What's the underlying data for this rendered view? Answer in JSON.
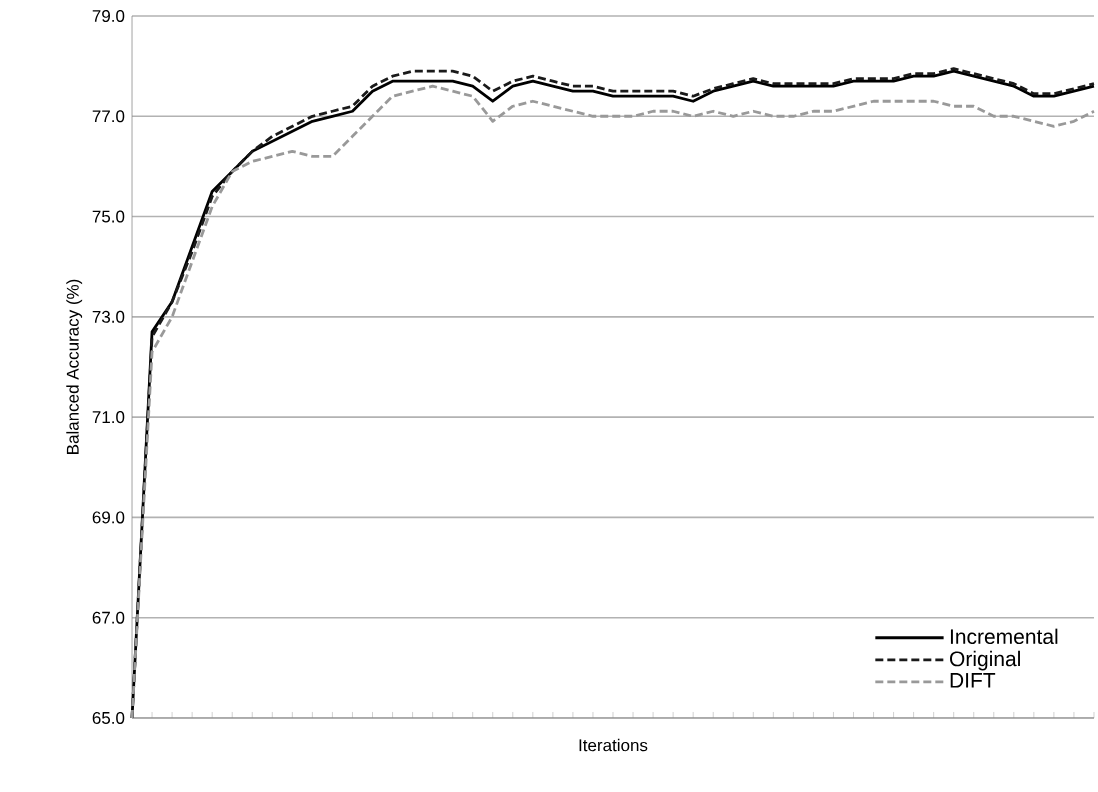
{
  "chart_data": {
    "type": "line",
    "xlabel": "Iterations",
    "ylabel": "Balanced Accuracy (%)",
    "categories": [
      null,
      null,
      null,
      null,
      null,
      null,
      null,
      null,
      null,
      null,
      null,
      null,
      null,
      null,
      null,
      null,
      null,
      null,
      null,
      null,
      null,
      null,
      null,
      null,
      null,
      null,
      null,
      null,
      null,
      null,
      null,
      null,
      null,
      null,
      null,
      null,
      null,
      null,
      null,
      null,
      null,
      null,
      null,
      null,
      null,
      null,
      null,
      null,
      null
    ],
    "ylim": [
      65,
      79
    ],
    "yticks": [
      {
        "value": 65,
        "label": "65.0"
      },
      {
        "value": 67,
        "label": "67.0"
      },
      {
        "value": 69,
        "label": "69.0"
      },
      {
        "value": 71,
        "label": "71.0"
      },
      {
        "value": 73,
        "label": "73.0"
      },
      {
        "value": 75,
        "label": "75.0"
      },
      {
        "value": 77,
        "label": "77.0"
      },
      {
        "value": 79,
        "label": "79.0"
      }
    ],
    "grid": "y",
    "legend": "bottom right",
    "tick_labels": "y",
    "marker": "none",
    "series": [
      {
        "name": "Incremental",
        "color": "#000000",
        "line_style": "solid",
        "values": [
          65.0,
          72.7,
          73.3,
          74.4,
          75.5,
          75.9,
          76.3,
          76.5,
          76.7,
          76.9,
          77.0,
          77.1,
          77.5,
          77.7,
          77.7,
          77.7,
          77.7,
          77.6,
          77.3,
          77.6,
          77.7,
          77.6,
          77.5,
          77.5,
          77.4,
          77.4,
          77.4,
          77.4,
          77.3,
          77.5,
          77.6,
          77.7,
          77.6,
          77.6,
          77.6,
          77.6,
          77.7,
          77.7,
          77.7,
          77.8,
          77.8,
          77.9,
          77.8,
          77.7,
          77.6,
          77.4,
          77.4,
          77.5,
          77.6
        ]
      },
      {
        "name": "Original",
        "color": "#1a1a1a",
        "line_style": "dashed",
        "values": [
          65.0,
          72.6,
          73.3,
          74.3,
          75.4,
          75.9,
          76.3,
          76.6,
          76.8,
          77.0,
          77.1,
          77.2,
          77.6,
          77.8,
          77.9,
          77.9,
          77.9,
          77.8,
          77.5,
          77.7,
          77.8,
          77.7,
          77.6,
          77.6,
          77.5,
          77.5,
          77.5,
          77.5,
          77.4,
          77.55,
          77.65,
          77.75,
          77.65,
          77.65,
          77.65,
          77.65,
          77.75,
          77.75,
          77.75,
          77.85,
          77.85,
          77.95,
          77.85,
          77.75,
          77.65,
          77.45,
          77.45,
          77.55,
          77.65
        ]
      },
      {
        "name": "DIFT",
        "color": "#999999",
        "line_style": "dashed",
        "values": [
          65.0,
          72.3,
          73.0,
          74.1,
          75.2,
          75.9,
          76.1,
          76.2,
          76.3,
          76.2,
          76.2,
          76.6,
          77.0,
          77.4,
          77.5,
          77.6,
          77.5,
          77.4,
          76.9,
          77.2,
          77.3,
          77.2,
          77.1,
          77.0,
          77.0,
          77.0,
          77.1,
          77.1,
          77.0,
          77.1,
          77.0,
          77.1,
          77.0,
          77.0,
          77.1,
          77.1,
          77.2,
          77.3,
          77.3,
          77.3,
          77.3,
          77.2,
          77.2,
          77.0,
          77.0,
          76.9,
          76.8,
          76.9,
          77.1
        ]
      }
    ]
  }
}
